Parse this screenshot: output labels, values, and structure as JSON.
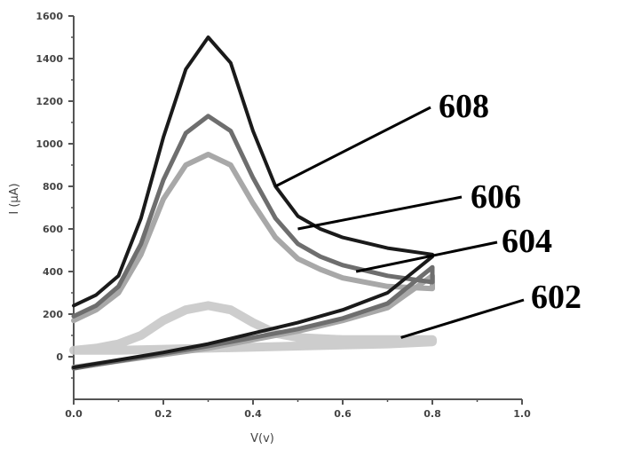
{
  "chart_data": {
    "type": "line",
    "xlabel": "V(v)",
    "ylabel": "I (μA)",
    "xlim": [
      0.0,
      1.0
    ],
    "ylim": [
      -200,
      1600
    ],
    "x_ticks": [
      "0.0",
      "0.2",
      "0.4",
      "0.6",
      "0.8",
      "1.0"
    ],
    "y_ticks": [
      "0",
      "200",
      "400",
      "600",
      "800",
      "1000",
      "1200",
      "1400",
      "1600"
    ],
    "grid": false,
    "series": [
      {
        "name": "602",
        "color": "#c8c8c8",
        "x": [
          0.0,
          0.05,
          0.1,
          0.15,
          0.2,
          0.25,
          0.3,
          0.35,
          0.4,
          0.45,
          0.5,
          0.6,
          0.7,
          0.8,
          0.8,
          0.7,
          0.6,
          0.5,
          0.4,
          0.3,
          0.2,
          0.1,
          0.0
        ],
        "y": [
          30,
          40,
          60,
          100,
          170,
          220,
          240,
          220,
          160,
          110,
          90,
          80,
          80,
          80,
          70,
          60,
          55,
          50,
          45,
          40,
          35,
          30,
          30
        ]
      },
      {
        "name": "604",
        "color": "#a8a8a8",
        "x": [
          0.0,
          0.05,
          0.1,
          0.15,
          0.2,
          0.25,
          0.3,
          0.35,
          0.4,
          0.45,
          0.5,
          0.55,
          0.6,
          0.7,
          0.8,
          0.8,
          0.7,
          0.6,
          0.5,
          0.4,
          0.3,
          0.2,
          0.1,
          0.0
        ],
        "y": [
          170,
          220,
          300,
          480,
          740,
          900,
          950,
          900,
          720,
          560,
          460,
          410,
          370,
          330,
          320,
          380,
          230,
          170,
          120,
          80,
          40,
          10,
          -20,
          -50
        ]
      },
      {
        "name": "606",
        "color": "#6e6e6e",
        "x": [
          0.0,
          0.05,
          0.1,
          0.15,
          0.2,
          0.25,
          0.3,
          0.35,
          0.4,
          0.45,
          0.5,
          0.55,
          0.6,
          0.7,
          0.8,
          0.8,
          0.7,
          0.6,
          0.5,
          0.4,
          0.3,
          0.2,
          0.1,
          0.0
        ],
        "y": [
          190,
          240,
          330,
          530,
          830,
          1050,
          1130,
          1060,
          840,
          650,
          530,
          470,
          430,
          380,
          350,
          420,
          250,
          180,
          130,
          90,
          50,
          15,
          -20,
          -55
        ]
      },
      {
        "name": "608",
        "color": "#1a1a1a",
        "x": [
          0.0,
          0.05,
          0.1,
          0.15,
          0.2,
          0.25,
          0.3,
          0.35,
          0.4,
          0.45,
          0.5,
          0.55,
          0.6,
          0.7,
          0.8,
          0.8,
          0.7,
          0.6,
          0.5,
          0.4,
          0.3,
          0.2,
          0.1,
          0.0
        ],
        "y": [
          240,
          290,
          380,
          650,
          1030,
          1350,
          1500,
          1380,
          1060,
          800,
          660,
          600,
          560,
          510,
          480,
          470,
          300,
          220,
          160,
          110,
          60,
          20,
          -15,
          -50
        ]
      }
    ],
    "callouts": [
      {
        "text": "608",
        "target_x": 0.45,
        "target_y": 800
      },
      {
        "text": "606",
        "target_x": 0.5,
        "target_y": 600
      },
      {
        "text": "604",
        "target_x": 0.63,
        "target_y": 400
      },
      {
        "text": "602",
        "target_x": 0.73,
        "target_y": 90
      }
    ]
  }
}
